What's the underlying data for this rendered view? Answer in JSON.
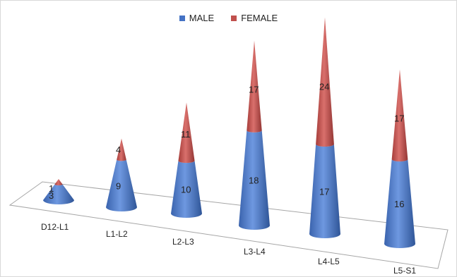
{
  "chart_data": {
    "type": "bar",
    "style": "3d-cone-stacked",
    "categories": [
      "D12-L1",
      "L1-L2",
      "L2-L3",
      "L3-L4",
      "L4-L5",
      "L5-S1"
    ],
    "series": [
      {
        "name": "MALE",
        "values": [
          3,
          9,
          10,
          18,
          17,
          16
        ],
        "color": "#4472C4"
      },
      {
        "name": "FEMALE",
        "values": [
          1,
          4,
          11,
          17,
          24,
          17
        ],
        "color": "#C0504D"
      }
    ],
    "legend": "top-center",
    "grid": false
  }
}
